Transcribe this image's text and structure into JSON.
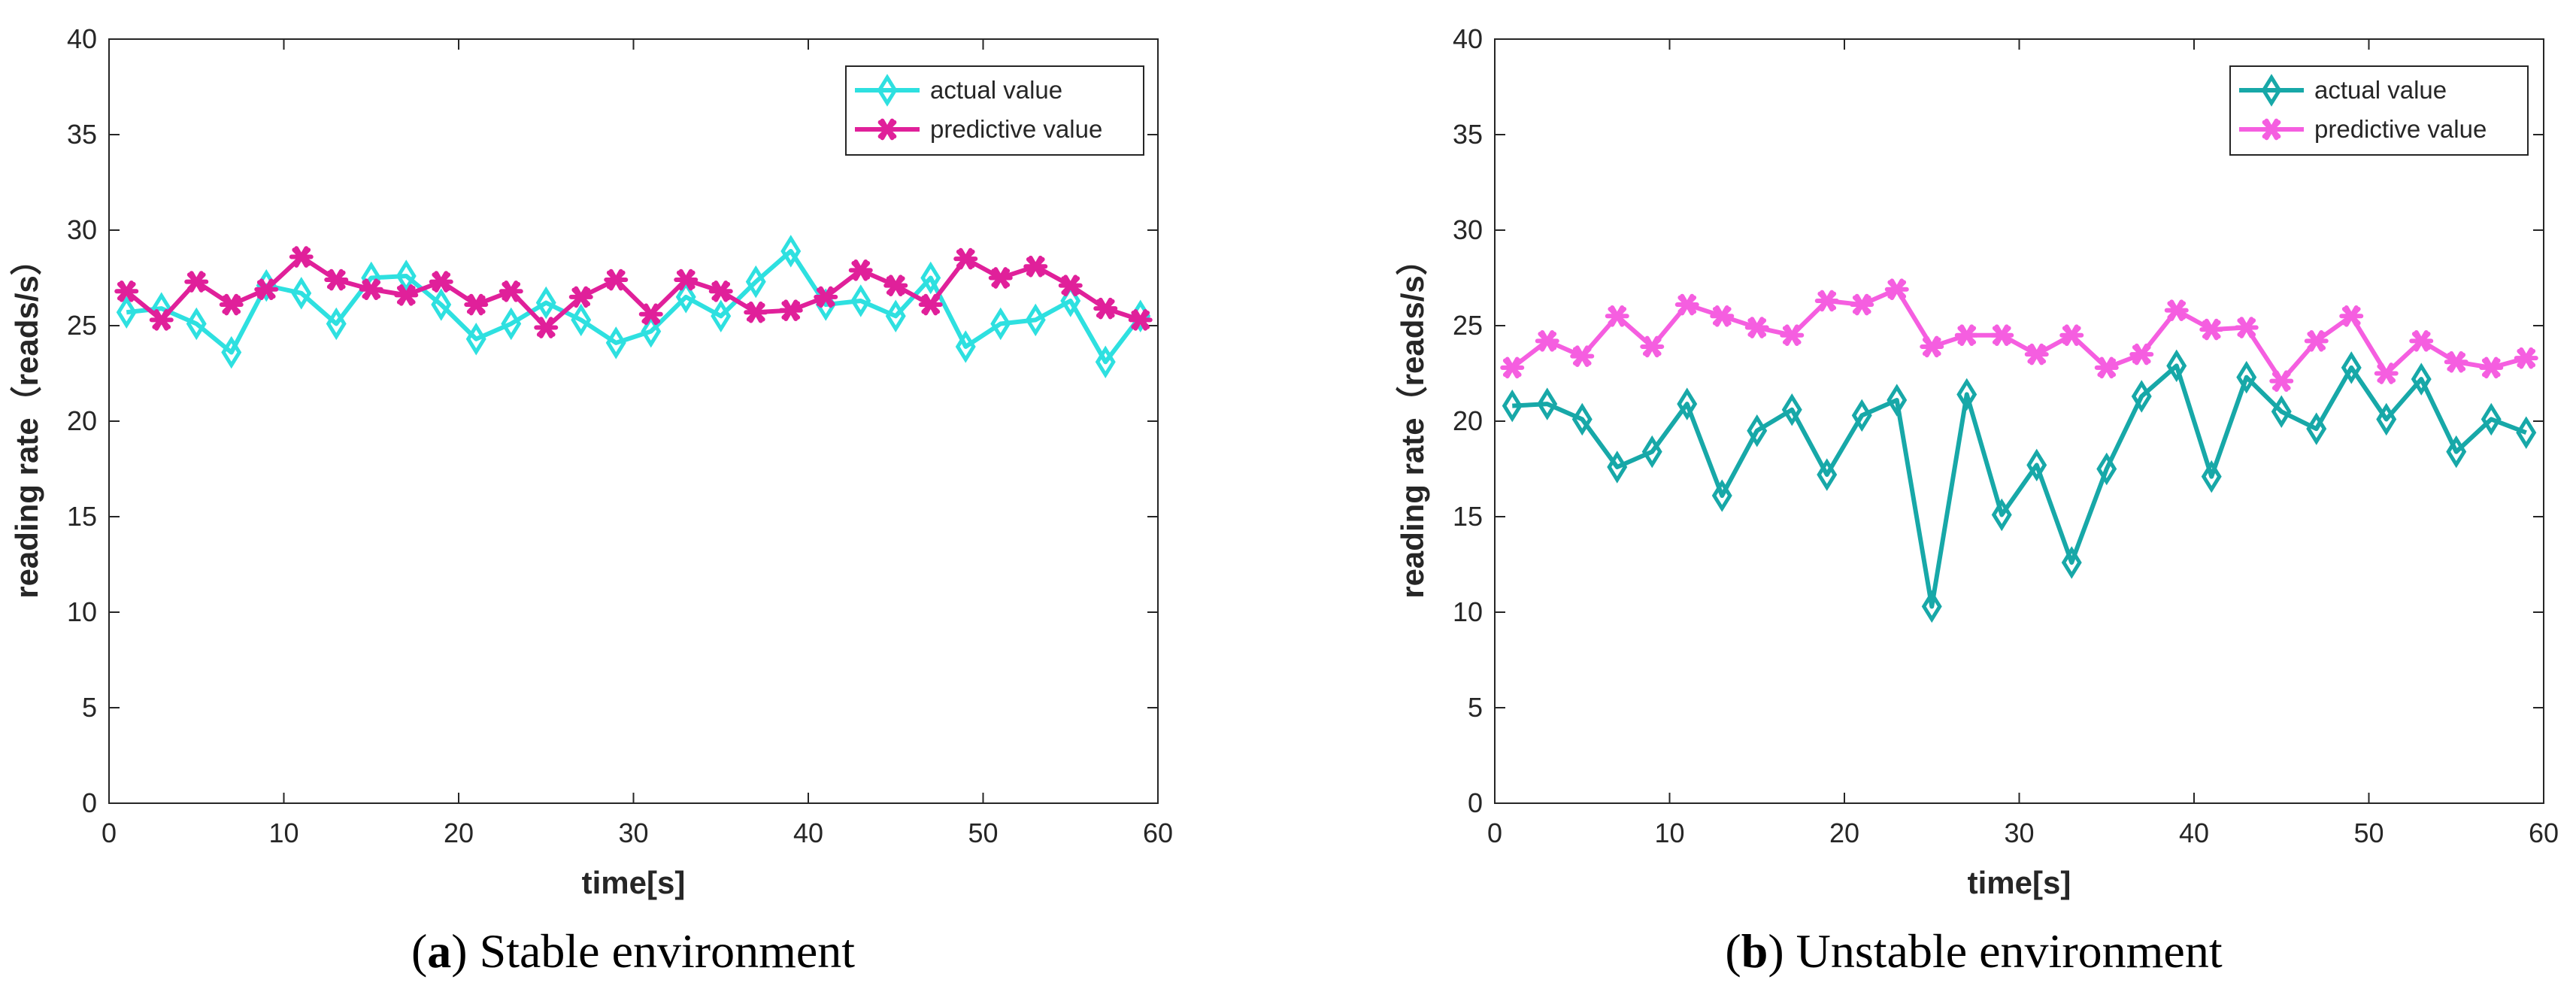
{
  "chart_data": [
    {
      "type": "line",
      "caption_letter": "a",
      "caption_text": "Stable environment",
      "xlabel": "time[s]",
      "ylabel": "reading rate（reads/s）",
      "xlim": [
        0,
        60
      ],
      "ylim": [
        0,
        40
      ],
      "xticks": [
        "0",
        "10",
        "20",
        "30",
        "40",
        "50",
        "60"
      ],
      "yticks": [
        "0",
        "5",
        "10",
        "15",
        "20",
        "25",
        "30",
        "35",
        "40"
      ],
      "legend_position": "top-right",
      "x": [
        1,
        3,
        5,
        7,
        9,
        11,
        13,
        15,
        17,
        19,
        21,
        23,
        25,
        27,
        29,
        31,
        33,
        35,
        37,
        39,
        41,
        43,
        45,
        47,
        49,
        51,
        53,
        55,
        57,
        59
      ],
      "series": [
        {
          "name": "actual value",
          "marker": "diamond",
          "color": "#2ee0e0",
          "values": [
            25.7,
            25.9,
            25.1,
            23.6,
            27.1,
            26.7,
            25.1,
            27.5,
            27.6,
            26.1,
            24.3,
            25.1,
            26.2,
            25.3,
            24.1,
            24.7,
            26.5,
            25.5,
            27.3,
            28.9,
            26.1,
            26.3,
            25.5,
            27.5,
            23.9,
            25.1,
            25.3,
            26.3,
            23.1,
            25.5
          ]
        },
        {
          "name": "predictive value",
          "marker": "asterisk",
          "color": "#e0209a",
          "values": [
            26.8,
            25.3,
            27.3,
            26.1,
            26.9,
            28.6,
            27.4,
            26.9,
            26.6,
            27.3,
            26.1,
            26.8,
            24.9,
            26.5,
            27.4,
            25.6,
            27.4,
            26.8,
            25.7,
            25.8,
            26.5,
            27.9,
            27.1,
            26.1,
            28.5,
            27.5,
            28.1,
            27.1,
            25.9,
            25.3
          ]
        }
      ]
    },
    {
      "type": "line",
      "caption_letter": "b",
      "caption_text": "Unstable environment",
      "xlabel": "time[s]",
      "ylabel": "reading rate（reads/s）",
      "xlim": [
        0,
        60
      ],
      "ylim": [
        0,
        40
      ],
      "xticks": [
        "0",
        "10",
        "20",
        "30",
        "40",
        "50",
        "60"
      ],
      "yticks": [
        "0",
        "5",
        "10",
        "15",
        "20",
        "25",
        "30",
        "35",
        "40"
      ],
      "legend_position": "top-right",
      "x": [
        1,
        3,
        5,
        7,
        9,
        11,
        13,
        15,
        17,
        19,
        21,
        23,
        25,
        27,
        29,
        31,
        33,
        35,
        37,
        39,
        41,
        43,
        45,
        47,
        49,
        51,
        53,
        55,
        57,
        59
      ],
      "series": [
        {
          "name": "actual value",
          "marker": "diamond",
          "color": "#17a8a8",
          "values": [
            20.8,
            20.9,
            20.1,
            17.6,
            18.4,
            20.9,
            16.1,
            19.5,
            20.6,
            17.2,
            20.3,
            21.1,
            10.3,
            21.4,
            15.1,
            17.7,
            12.6,
            17.5,
            21.3,
            22.9,
            17.1,
            22.3,
            20.5,
            19.6,
            22.8,
            20.1,
            22.2,
            18.4,
            20.1,
            19.4
          ]
        },
        {
          "name": "predictive value",
          "marker": "asterisk",
          "color": "#f55ee0",
          "values": [
            22.8,
            24.2,
            23.4,
            25.5,
            23.9,
            26.1,
            25.5,
            24.9,
            24.5,
            26.3,
            26.1,
            26.9,
            23.9,
            24.5,
            24.5,
            23.5,
            24.5,
            22.8,
            23.5,
            25.8,
            24.8,
            24.9,
            22.1,
            24.2,
            25.5,
            22.5,
            24.2,
            23.1,
            22.8,
            23.3
          ]
        }
      ]
    }
  ]
}
